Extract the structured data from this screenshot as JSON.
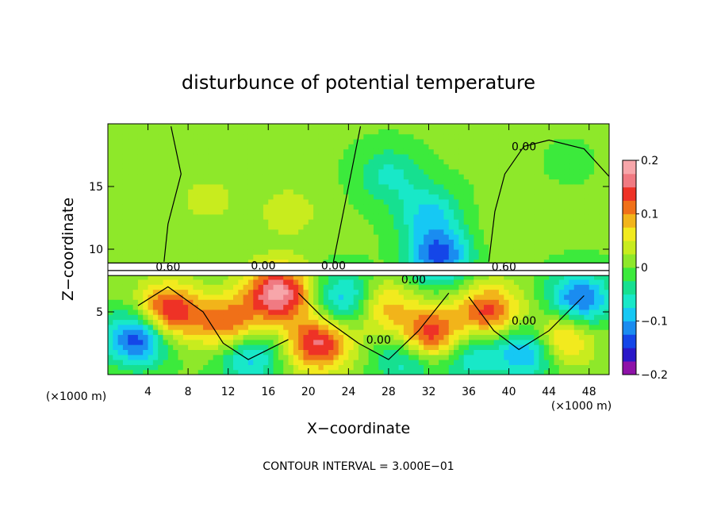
{
  "chart_data": {
    "type": "heatmap",
    "title": "disturbunce of potential temperature",
    "xlabel": "X−coordinate",
    "ylabel": "Z−coordinate",
    "x_unit_left": "(×1000 m)",
    "x_unit_right": "(×1000 m)",
    "footer": "CONTOUR INTERVAL = 3.000E−01",
    "xlim": [
      0,
      50
    ],
    "ylim": [
      0,
      20
    ],
    "x_ticks": [
      4,
      8,
      12,
      16,
      20,
      24,
      28,
      32,
      36,
      40,
      44,
      48
    ],
    "y_ticks": [
      5,
      10,
      15
    ],
    "colorbar": {
      "range": [
        -0.2,
        0.2
      ],
      "tick_values": [
        0.2,
        0.1,
        0,
        -0.1,
        -0.2
      ],
      "tick_labels": [
        "0.2",
        "0.1",
        "0",
        "−0.1",
        "−0.2"
      ],
      "colors": [
        "#8e12a8",
        "#2a18c8",
        "#1446e8",
        "#1a8cf0",
        "#16c8f4",
        "#18e8c8",
        "#16e090",
        "#3cea3c",
        "#8ee82a",
        "#c8ec1e",
        "#f2ea1e",
        "#f2b41a",
        "#f07018",
        "#ee3226",
        "#f07a82",
        "#f7a6aa"
      ]
    },
    "contour_labels": [
      {
        "text": "0.00",
        "x": 41.5,
        "y": 18.2
      },
      {
        "text": "0.60",
        "x": 6.0,
        "y": 8.6
      },
      {
        "text": "0.00",
        "x": 15.5,
        "y": 8.7
      },
      {
        "text": "0.00",
        "x": 22.5,
        "y": 8.7
      },
      {
        "text": "0.60",
        "x": 39.5,
        "y": 8.6
      },
      {
        "text": "0.00",
        "x": 30.5,
        "y": 7.6
      },
      {
        "text": "0.00",
        "x": 41.5,
        "y": 4.3
      },
      {
        "text": "0.00",
        "x": 27.0,
        "y": 2.8
      }
    ],
    "field_blobs": [
      {
        "x": 33,
        "y": 9.5,
        "v": -0.14
      },
      {
        "x": 32,
        "y": 13,
        "v": -0.08
      },
      {
        "x": 28,
        "y": 16,
        "v": -0.06
      },
      {
        "x": 46,
        "y": 17,
        "v": -0.01
      },
      {
        "x": 18,
        "y": 13,
        "v": 0.035
      },
      {
        "x": 10,
        "y": 14,
        "v": 0.03
      },
      {
        "x": 40,
        "y": 12,
        "v": 0.02
      },
      {
        "x": 6,
        "y": 5,
        "v": 0.16
      },
      {
        "x": 12,
        "y": 4,
        "v": 0.12
      },
      {
        "x": 17,
        "y": 6.5,
        "v": 0.18
      },
      {
        "x": 21,
        "y": 2.5,
        "v": 0.15
      },
      {
        "x": 27,
        "y": 5.5,
        "v": 0.1
      },
      {
        "x": 32,
        "y": 3,
        "v": 0.17
      },
      {
        "x": 38,
        "y": 5,
        "v": 0.13
      },
      {
        "x": 45,
        "y": 3,
        "v": 0.12
      },
      {
        "x": 3,
        "y": 3,
        "v": -0.16
      },
      {
        "x": 14,
        "y": 1.5,
        "v": -0.1
      },
      {
        "x": 24,
        "y": 6,
        "v": -0.12
      },
      {
        "x": 30,
        "y": 1.5,
        "v": -0.1
      },
      {
        "x": 42,
        "y": 2,
        "v": -0.13
      },
      {
        "x": 47,
        "y": 6,
        "v": -0.14
      },
      {
        "x": 36,
        "y": 1.5,
        "v": -0.08
      }
    ]
  }
}
